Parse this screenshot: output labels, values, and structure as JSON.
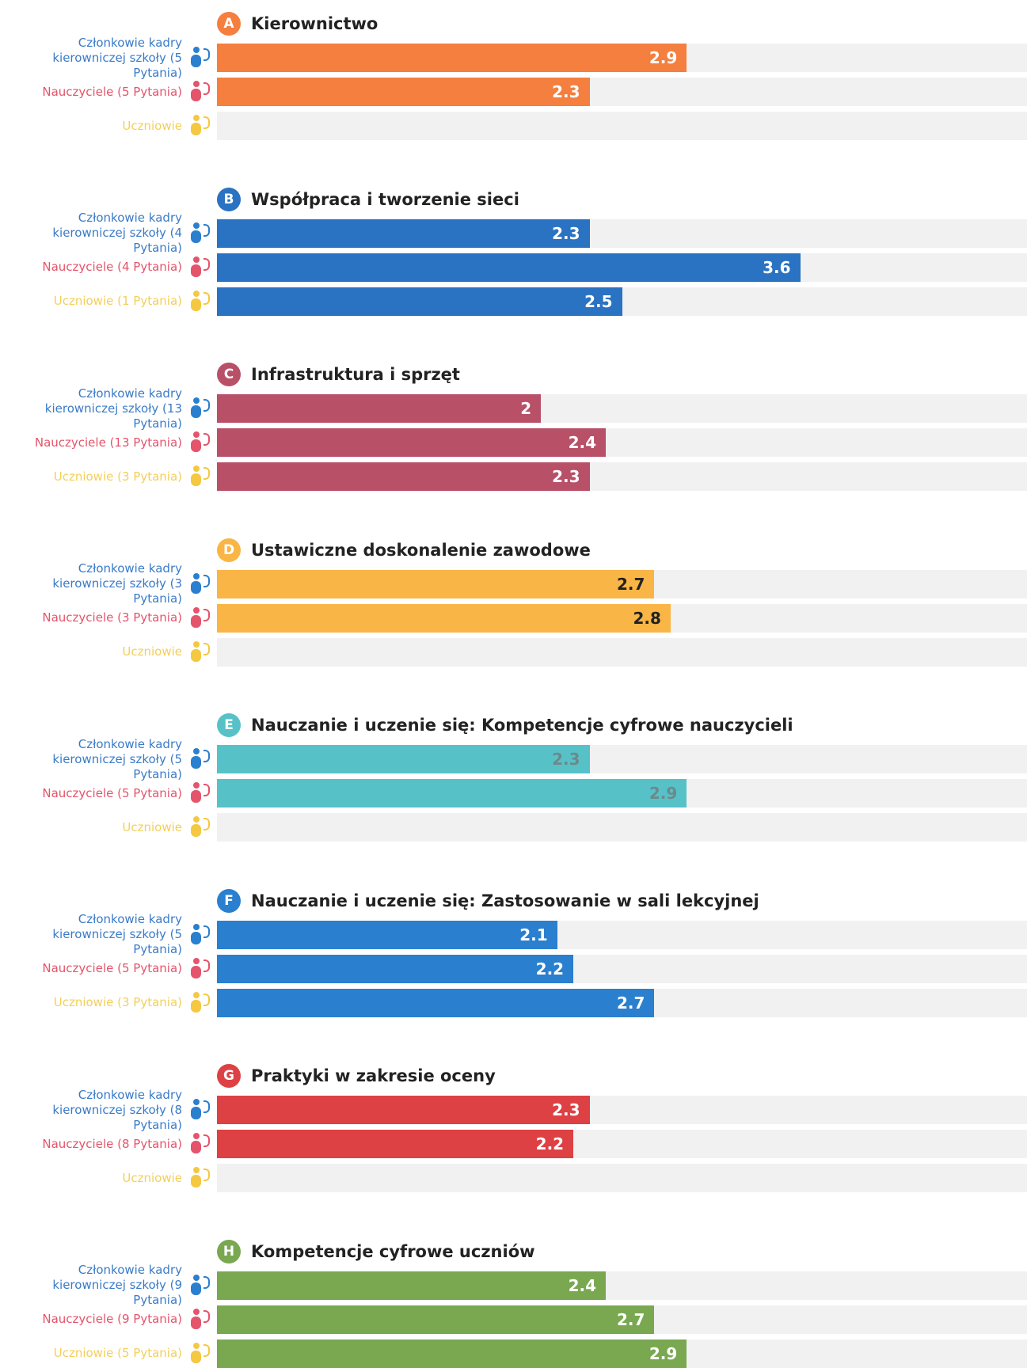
{
  "chart_data": [
    {
      "type": "bar",
      "letter": "A",
      "title": "Kierownictwo",
      "color": "#f47f3f",
      "value_label_color": "#ffffff",
      "xlim": [
        0,
        5
      ],
      "categories": [
        "Członkowie kadry kierowniczej szkoły (5 Pytania)",
        "Nauczyciele (5 Pytania)",
        "Uczniowie"
      ],
      "values": [
        2.9,
        2.3,
        null
      ]
    },
    {
      "type": "bar",
      "letter": "B",
      "title": "Współpraca i tworzenie sieci",
      "color": "#2a72c2",
      "value_label_color": "#ffffff",
      "xlim": [
        0,
        5
      ],
      "categories": [
        "Członkowie kadry kierowniczej szkoły (4 Pytania)",
        "Nauczyciele (4 Pytania)",
        "Uczniowie (1 Pytania)"
      ],
      "values": [
        2.3,
        3.6,
        2.5
      ]
    },
    {
      "type": "bar",
      "letter": "C",
      "title": "Infrastruktura i sprzęt",
      "color": "#b85068",
      "value_label_color": "#ffffff",
      "xlim": [
        0,
        5
      ],
      "categories": [
        "Członkowie kadry kierowniczej szkoły (13 Pytania)",
        "Nauczyciele (13 Pytania)",
        "Uczniowie (3 Pytania)"
      ],
      "values": [
        2,
        2.4,
        2.3
      ]
    },
    {
      "type": "bar",
      "letter": "D",
      "title": "Ustawiczne doskonalenie zawodowe",
      "color": "#f9b545",
      "value_label_color": "#222222",
      "xlim": [
        0,
        5
      ],
      "categories": [
        "Członkowie kadry kierowniczej szkoły (3 Pytania)",
        "Nauczyciele (3 Pytania)",
        "Uczniowie"
      ],
      "values": [
        2.7,
        2.8,
        null
      ]
    },
    {
      "type": "bar",
      "letter": "E",
      "title": "Nauczanie i uczenie się: Kompetencje cyfrowe nauczycieli",
      "color": "#56c2c8",
      "value_label_color": "#6b8a8c",
      "xlim": [
        0,
        5
      ],
      "categories": [
        "Członkowie kadry kierowniczej szkoły (5 Pytania)",
        "Nauczyciele (5 Pytania)",
        "Uczniowie"
      ],
      "values": [
        2.3,
        2.9,
        null
      ]
    },
    {
      "type": "bar",
      "letter": "F",
      "title": "Nauczanie i uczenie się: Zastosowanie w sali lekcyjnej",
      "color": "#2a7fcf",
      "value_label_color": "#ffffff",
      "xlim": [
        0,
        5
      ],
      "categories": [
        "Członkowie kadry kierowniczej szkoły (5 Pytania)",
        "Nauczyciele (5 Pytania)",
        "Uczniowie (3 Pytania)"
      ],
      "values": [
        2.1,
        2.2,
        2.7
      ]
    },
    {
      "type": "bar",
      "letter": "G",
      "title": "Praktyki w zakresie oceny",
      "color": "#dd4144",
      "value_label_color": "#ffffff",
      "xlim": [
        0,
        5
      ],
      "categories": [
        "Członkowie kadry kierowniczej szkoły (8 Pytania)",
        "Nauczyciele (8 Pytania)",
        "Uczniowie"
      ],
      "values": [
        2.3,
        2.2,
        null
      ]
    },
    {
      "type": "bar",
      "letter": "H",
      "title": "Kompetencje cyfrowe uczniów",
      "color": "#79a851",
      "value_label_color": "#ffffff",
      "xlim": [
        0,
        5
      ],
      "categories": [
        "Członkowie kadry kierowniczej szkoły (9 Pytania)",
        "Nauczyciele (9 Pytania)",
        "Uczniowie (5 Pytania)"
      ],
      "values": [
        2.4,
        2.7,
        2.9
      ]
    }
  ]
}
